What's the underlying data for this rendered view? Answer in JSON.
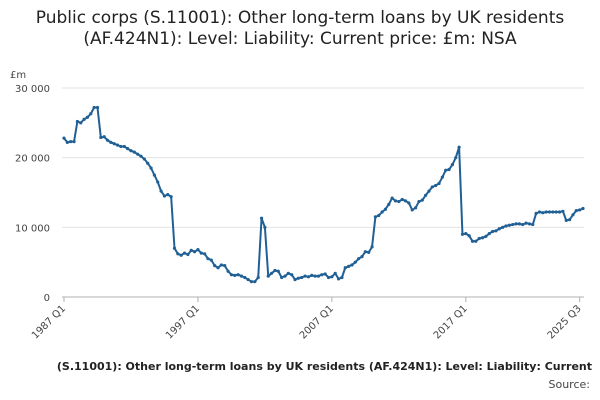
{
  "chart_data": {
    "type": "line",
    "title": "Public corps (S.11001): Other long-term loans by UK residents (AF.424N1): Level: Liability: Current price: £m: NSA",
    "ylabel": "£m",
    "xlabel": "",
    "ylim": [
      0,
      30000
    ],
    "yticks": [
      "0",
      "10 000",
      "20 000",
      "30 000"
    ],
    "ytick_values": [
      0,
      10000,
      20000,
      30000
    ],
    "xticks": [
      "1987 Q1",
      "1997 Q1",
      "2007 Q1",
      "2017 Q1",
      "2025 Q3"
    ],
    "xtick_index": [
      0,
      40,
      80,
      120,
      154
    ],
    "grid": true,
    "line_color": "#206095",
    "series": [
      {
        "values": [
          22800,
          22200,
          22300,
          22300,
          25200,
          25000,
          25500,
          25800,
          26300,
          27200,
          27200,
          22900,
          23000,
          22500,
          22200,
          22000,
          21800,
          21600,
          21600,
          21300,
          21000,
          20800,
          20500,
          20200,
          19800,
          19200,
          18500,
          17500,
          16500,
          15200,
          14500,
          14700,
          14400,
          7000,
          6200,
          6000,
          6300,
          6100,
          6700,
          6500,
          6800,
          6300,
          6200,
          5500,
          5300,
          4500,
          4200,
          4600,
          4500,
          3700,
          3200,
          3100,
          3200,
          3000,
          2800,
          2500,
          2200,
          2200,
          2800,
          11300,
          10000,
          3000,
          3400,
          3800,
          3700,
          2800,
          3000,
          3400,
          3200,
          2500,
          2700,
          2800,
          3000,
          2900,
          3100,
          3000,
          3000,
          3200,
          3300,
          2800,
          2900,
          3400,
          2600,
          2800,
          4200,
          4400,
          4600,
          5000,
          5500,
          5800,
          6500,
          6400,
          7200,
          11500,
          11700,
          12200,
          12600,
          13300,
          14200,
          13800,
          13700,
          14000,
          13800,
          13500,
          12500,
          12800,
          13700,
          13900,
          14600,
          15200,
          15800,
          16000,
          16300,
          17200,
          18200,
          18300,
          19000,
          20000,
          21500,
          9000,
          9100,
          8800,
          8000,
          8000,
          8400,
          8500,
          8700,
          9100,
          9400,
          9500,
          9800,
          10000,
          10200,
          10300,
          10400,
          10500,
          10500,
          10400,
          10600,
          10500,
          10400,
          12000,
          12200,
          12100,
          12200,
          12200,
          12200,
          12200,
          12200,
          12300,
          11000,
          11100,
          11800,
          12400,
          12500,
          12700
        ]
      }
    ]
  },
  "footer": {
    "series_label": "(S.11001): Other long-term loans by UK residents (AF.424N1): Level: Liability: Current",
    "source_label": "Source:"
  }
}
